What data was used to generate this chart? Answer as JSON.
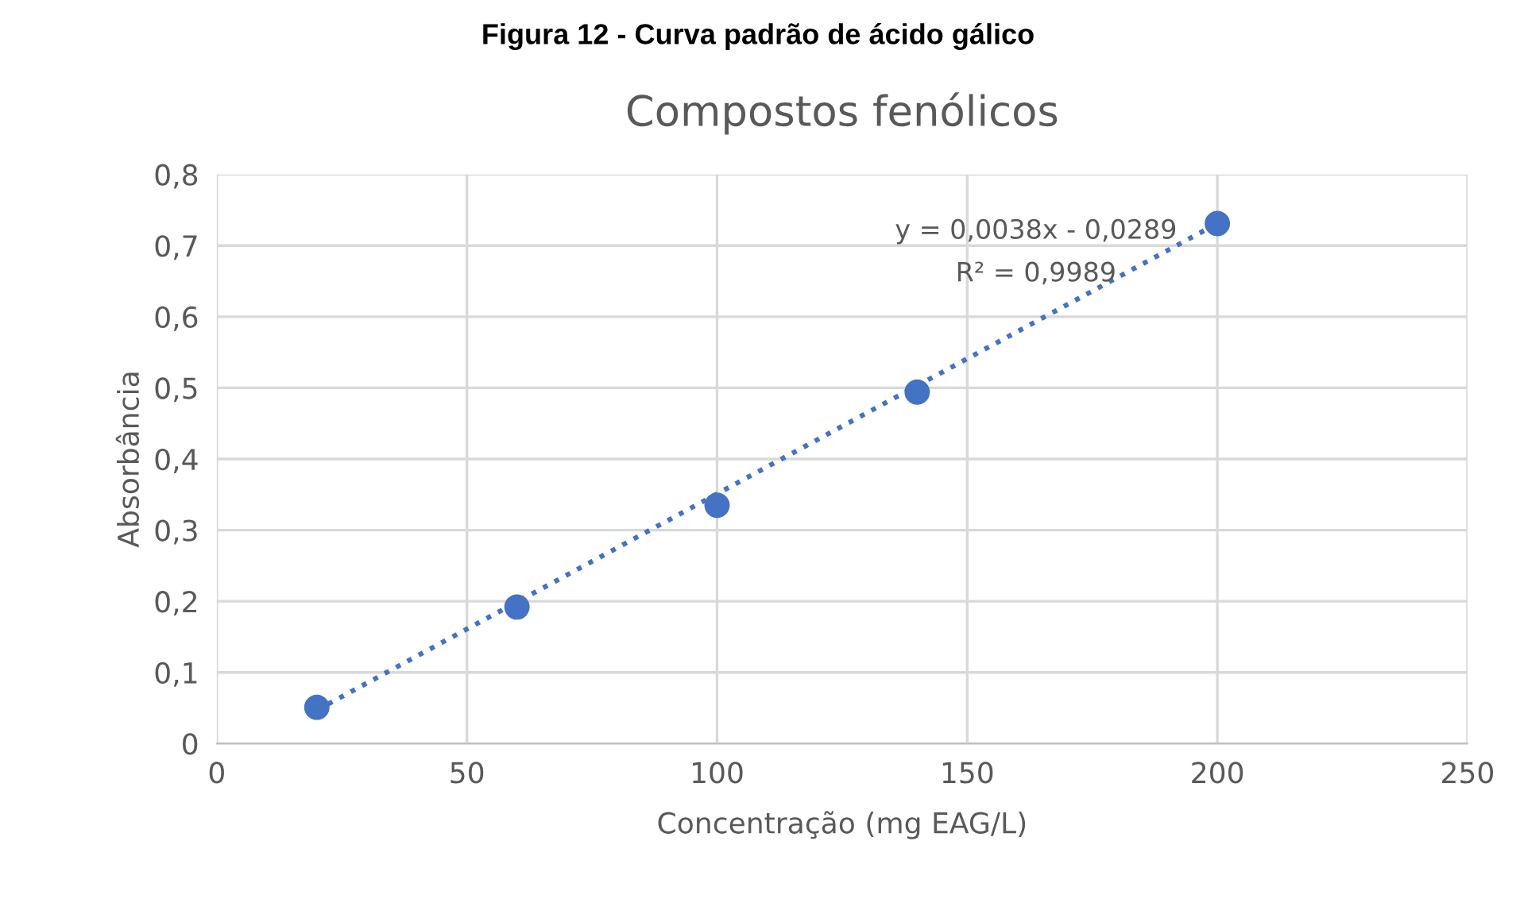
{
  "chart_data": {
    "type": "scatter",
    "title": "Compostos fenólicos",
    "xlabel": "Concentração (mg EAG/L)",
    "ylabel": "Absorbância",
    "annotations": [
      "Figura 12 - Curva padrão de ácido gálico",
      "y = 0,0038x - 0,0289",
      "R² = 0,9989"
    ],
    "x": [
      20,
      60,
      100,
      140,
      200
    ],
    "series": [
      {
        "color": "#4472c4",
        "values": [
          0.051,
          0.192,
          0.335,
          0.494,
          0.731
        ],
        "marker": "circle"
      },
      {
        "type": "line",
        "color": "#4472c4",
        "x": [
          20,
          200
        ],
        "values": [
          0.047,
          0.731
        ],
        "line_style": "dotted"
      }
    ],
    "xlim": [
      0,
      250
    ],
    "xticks": [
      0,
      50,
      100,
      150,
      200,
      250
    ],
    "ylim": [
      0,
      0.8
    ],
    "yticks": [
      0,
      {
        "value": 0.1,
        "label": "0,1"
      },
      {
        "value": 0.2,
        "label": "0,2"
      },
      {
        "value": 0.3,
        "label": "0,3"
      },
      {
        "value": 0.4,
        "label": "0,4"
      },
      {
        "value": 0.5,
        "label": "0,5"
      },
      {
        "value": 0.6,
        "label": "0,6"
      },
      {
        "value": 0.7,
        "label": "0,7"
      },
      {
        "value": 0.8,
        "label": "0,8"
      }
    ],
    "grid": true,
    "legend": false
  }
}
